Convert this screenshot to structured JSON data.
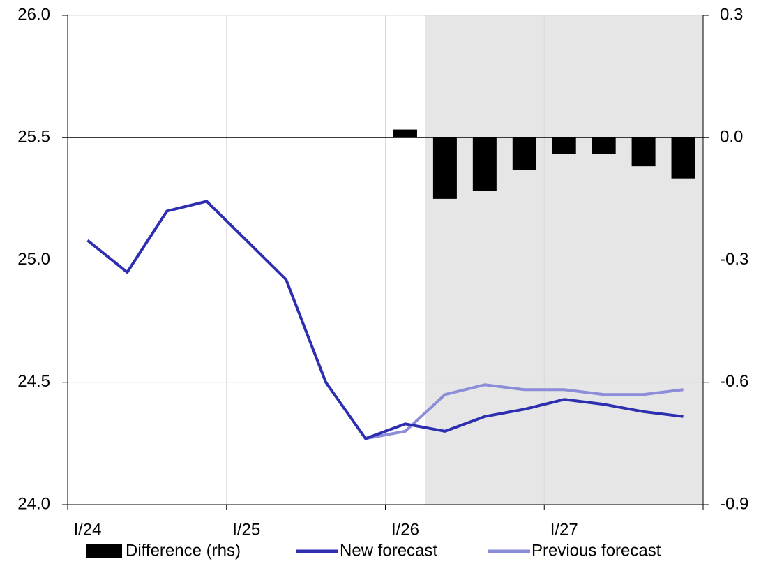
{
  "chart_data": {
    "type": "line",
    "categories": [
      "I/24",
      null,
      null,
      null,
      "I/25",
      null,
      null,
      null,
      "I/26",
      null,
      null,
      null,
      "I/27",
      null,
      null,
      null
    ],
    "shaded_start_index": 9,
    "shade_color": "#e6e6e6",
    "grid": true,
    "legend": "bottom",
    "ylim": [
      24,
      26
    ],
    "yticks": [
      {
        "value": 24,
        "label": "24.0"
      },
      {
        "value": 24.5,
        "label": "24.5"
      },
      {
        "value": 25,
        "label": "25.0"
      },
      {
        "value": 25.5,
        "label": "25.5"
      },
      {
        "value": 26,
        "label": "26.0"
      }
    ],
    "y2lim": [
      -0.9,
      0.3
    ],
    "y2ticks": [
      -0.9,
      -0.6,
      -0.3,
      {
        "value": 0,
        "label": "0.0"
      },
      0.3
    ],
    "series": [
      {
        "name": "Difference (rhs)",
        "type": "bar",
        "axis": "y2",
        "color": "#000000",
        "values": [
          null,
          null,
          null,
          null,
          null,
          null,
          null,
          null,
          0.02,
          -0.15,
          -0.13,
          -0.08,
          -0.04,
          -0.04,
          -0.07,
          -0.1
        ]
      },
      {
        "name": "New forecast",
        "type": "line",
        "color": "#2e2eb0",
        "values": [
          25.08,
          24.95,
          25.2,
          25.24,
          25.08,
          24.92,
          24.5,
          24.27,
          24.33,
          24.3,
          24.36,
          24.39,
          24.43,
          24.41,
          24.38,
          24.36
        ]
      },
      {
        "name": "Previous forecast",
        "type": "line",
        "color": "#8c8cd9",
        "values": [
          null,
          null,
          null,
          null,
          null,
          null,
          null,
          24.27,
          24.3,
          24.45,
          24.49,
          24.47,
          24.47,
          24.45,
          24.45,
          24.47
        ]
      }
    ]
  }
}
